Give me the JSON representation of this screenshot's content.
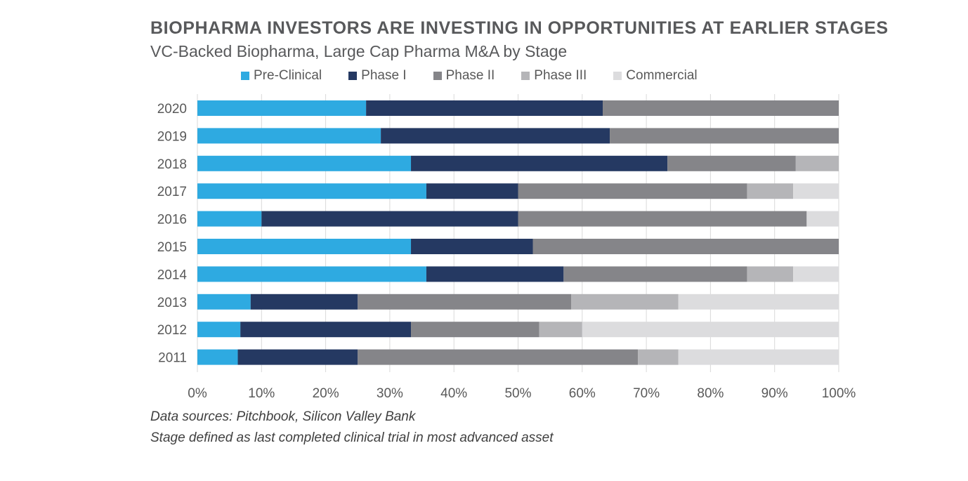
{
  "chart_data": {
    "type": "bar",
    "orientation": "horizontal",
    "stacked": true,
    "percent": true,
    "title": "BIOPHARMA INVESTORS ARE INVESTING IN OPPORTUNITIES AT EARLIER STAGES",
    "subtitle": "VC-Backed Biopharma, Large Cap Pharma M&A by Stage",
    "categories": [
      "2020",
      "2019",
      "2018",
      "2017",
      "2016",
      "2015",
      "2014",
      "2013",
      "2012",
      "2011"
    ],
    "series": [
      {
        "name": "Pre-Clinical",
        "color": "#2eaae1",
        "values": [
          26.3,
          28.6,
          33.3,
          35.7,
          10.0,
          33.3,
          35.7,
          8.3,
          6.7,
          6.3
        ]
      },
      {
        "name": "Phase I",
        "color": "#253962",
        "values": [
          36.9,
          35.7,
          40.0,
          14.3,
          40.0,
          19.0,
          21.4,
          16.7,
          26.6,
          18.7
        ]
      },
      {
        "name": "Phase II",
        "color": "#858589",
        "values": [
          36.8,
          35.7,
          20.0,
          35.7,
          45.0,
          47.7,
          28.6,
          33.3,
          20.0,
          43.7
        ]
      },
      {
        "name": "Phase III",
        "color": "#b5b5b8",
        "values": [
          0,
          0,
          6.7,
          7.2,
          0,
          0,
          7.2,
          16.7,
          6.7,
          6.3
        ]
      },
      {
        "name": "Commercial",
        "color": "#dcdcde",
        "values": [
          0,
          0,
          0,
          7.1,
          5.0,
          0,
          7.1,
          25.0,
          40.0,
          25.0
        ]
      }
    ],
    "xlim": [
      0,
      100
    ],
    "xticks": [
      "0%",
      "10%",
      "20%",
      "30%",
      "40%",
      "50%",
      "60%",
      "70%",
      "80%",
      "90%",
      "100%"
    ],
    "xlabel": "",
    "ylabel": "",
    "grid": true,
    "legend_position": "top"
  },
  "notes": [
    "Data sources: Pitchbook, Silicon Valley Bank",
    "Stage defined as last completed clinical trial in most advanced asset"
  ]
}
